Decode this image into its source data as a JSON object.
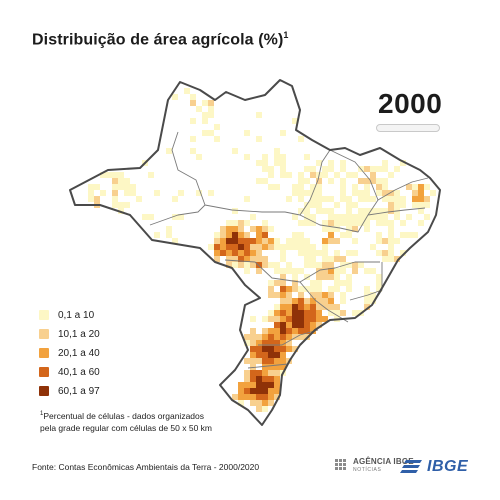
{
  "title": {
    "text": "Distribuição de área agrícola (%)",
    "superscript": "1"
  },
  "year": {
    "value": "2000"
  },
  "legend": {
    "items": [
      {
        "label": "0,1 a 10",
        "color": "#fdf7c5"
      },
      {
        "label": "10,1 a 20",
        "color": "#f8d08f"
      },
      {
        "label": "20,1 a 40",
        "color": "#f2a23e"
      },
      {
        "label": "40,1 a 60",
        "color": "#d3661b"
      },
      {
        "label": "60,1 a 97",
        "color": "#8f3208"
      }
    ]
  },
  "footnote": {
    "marker": "1",
    "line1": "Percentual de células - dados organizados",
    "line2": "pela grade regular com células de 50 x 50 km"
  },
  "source": {
    "text": "Fonte: Contas Econômicas  Ambientais  da Terra - 2000/2020"
  },
  "branding": {
    "agencia_name": "AGÊNCIA IBGE",
    "agencia_sub": "NOTÍCIAS",
    "ibge_name": "IBGE",
    "ibge_color": "#2f5fa8"
  },
  "map": {
    "region": "Brasil",
    "border_color": "#4a4a4a",
    "state_border_color": "#7a7a7a"
  }
}
